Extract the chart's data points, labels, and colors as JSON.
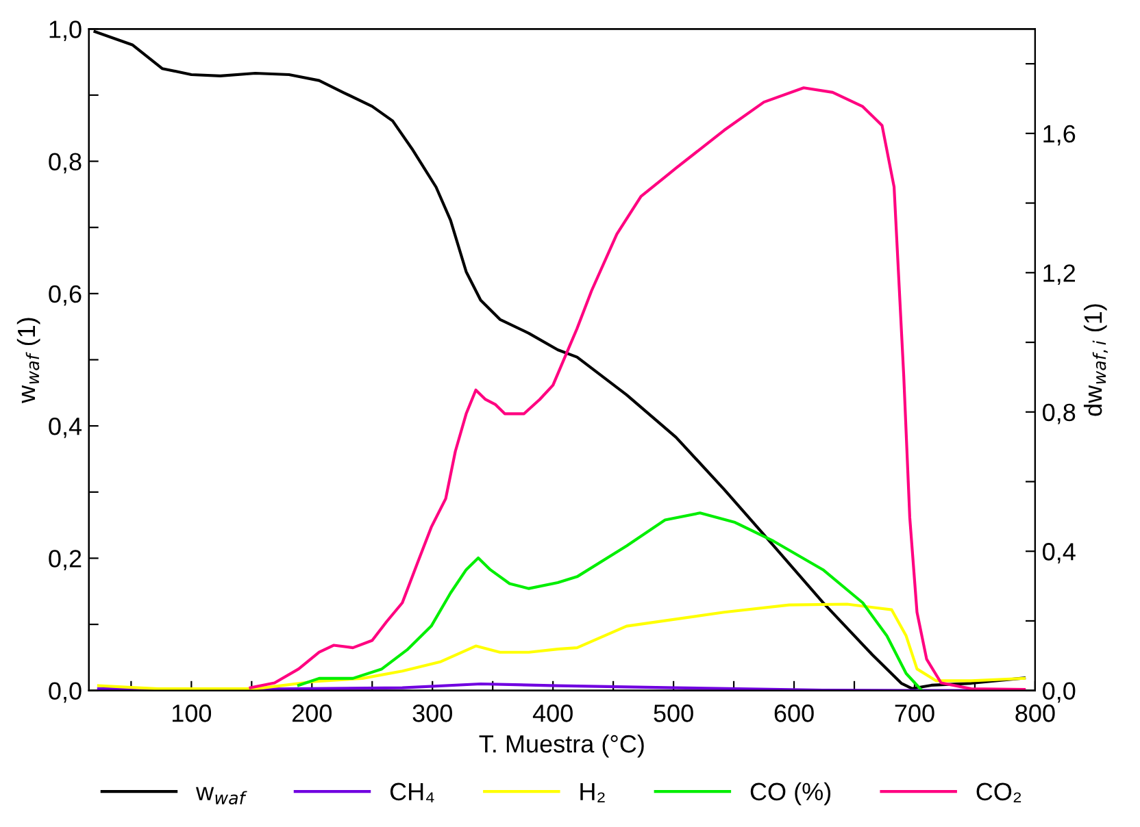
{
  "chart_data": {
    "type": "line",
    "xlabel": "T. Muestra (°C)",
    "ylabel": "w$_{waf}$ (1)",
    "y2label": "dw$_{waf,i}$ (1)",
    "xlim": [
      15,
      800
    ],
    "ylim": [
      0,
      1.0
    ],
    "y2lim": [
      0,
      1.9
    ],
    "xticks": [
      {
        "value": 50,
        "label": null
      },
      100,
      {
        "value": 150,
        "label": null
      },
      200,
      {
        "value": 250,
        "label": null
      },
      300,
      {
        "value": 350,
        "label": null
      },
      400,
      {
        "value": 450,
        "label": null
      },
      500,
      {
        "value": 550,
        "label": null
      },
      600,
      {
        "value": 650,
        "label": null
      },
      700,
      {
        "value": 750,
        "label": null
      },
      800
    ],
    "yticks": [
      {
        "value": 0,
        "label": "0,0"
      },
      {
        "value": 0.1,
        "label": null
      },
      {
        "value": 0.2,
        "label": "0,2"
      },
      {
        "value": 0.3,
        "label": null
      },
      {
        "value": 0.4,
        "label": "0,4"
      },
      {
        "value": 0.5,
        "label": null
      },
      {
        "value": 0.6,
        "label": "0,6"
      },
      {
        "value": 0.7,
        "label": null
      },
      {
        "value": 0.8,
        "label": "0,8"
      },
      {
        "value": 0.9,
        "label": null
      },
      {
        "value": 1.0,
        "label": "1,0"
      }
    ],
    "y2ticks": [
      {
        "value": 0,
        "label": "0,0"
      },
      {
        "value": 0.2,
        "label": null
      },
      {
        "value": 0.4,
        "label": "0,4"
      },
      {
        "value": 0.6,
        "label": null
      },
      {
        "value": 0.8,
        "label": "0,8"
      },
      {
        "value": 1.0,
        "label": null
      },
      {
        "value": 1.2,
        "label": "1,2"
      },
      {
        "value": 1.4,
        "label": null
      },
      {
        "value": 1.6,
        "label": "1,6"
      },
      {
        "value": 1.8,
        "label": null
      }
    ],
    "grid": false,
    "legend": "bottom",
    "line_style": "solid",
    "series": [
      {
        "name": "w$_{waf}$",
        "color": "#000000",
        "x": [
          20,
          51,
          76,
          100,
          124,
          153,
          181,
          206,
          226,
          250,
          267,
          283,
          303,
          315,
          328,
          340,
          356,
          380,
          404,
          420,
          461,
          502,
          542,
          583,
          624,
          665,
          689,
          698,
          714,
          747,
          791
        ],
        "values": [
          0.996,
          0.976,
          0.94,
          0.931,
          0.929,
          0.933,
          0.931,
          0.922,
          0.904,
          0.883,
          0.861,
          0.819,
          0.761,
          0.711,
          0.633,
          0.59,
          0.561,
          0.54,
          0.515,
          0.504,
          0.447,
          0.383,
          0.304,
          0.219,
          0.133,
          0.054,
          0.011,
          0.003,
          0.008,
          0.011,
          0.019
        ]
      },
      {
        "name": "CH₄",
        "color": "#7000e0",
        "axis": "y2",
        "x": [
          23,
          153,
          275,
          340,
          404,
          502,
          624,
          706,
          791
        ],
        "values": [
          0.005,
          0.004,
          0.008,
          0.019,
          0.014,
          0.008,
          0.001,
          0,
          0
        ]
      },
      {
        "name": "H₂",
        "color": "#ffff00",
        "axis": "y2",
        "x": [
          23,
          72,
          153,
          202,
          242,
          275,
          307,
          336,
          356,
          380,
          404,
          420,
          461,
          542,
          596,
          644,
          681,
          693,
          702,
          718,
          747,
          791
        ],
        "values": [
          0.014,
          0.005,
          0.005,
          0.026,
          0.035,
          0.056,
          0.083,
          0.128,
          0.11,
          0.11,
          0.119,
          0.123,
          0.185,
          0.225,
          0.246,
          0.248,
          0.232,
          0.157,
          0.062,
          0.028,
          0.028,
          0.035
        ]
      },
      {
        "name": "CO (%)",
        "color": "#00ee00",
        "axis": "y2",
        "x": [
          189,
          206,
          234,
          258,
          279,
          299,
          315,
          328,
          338,
          348,
          364,
          380,
          404,
          420,
          461,
          493,
          522,
          551,
          583,
          624,
          657,
          677,
          693,
          706
        ],
        "values": [
          0.015,
          0.035,
          0.035,
          0.062,
          0.117,
          0.185,
          0.28,
          0.347,
          0.381,
          0.347,
          0.307,
          0.293,
          0.31,
          0.327,
          0.415,
          0.49,
          0.51,
          0.483,
          0.429,
          0.347,
          0.252,
          0.157,
          0.049,
          0
        ]
      },
      {
        "name": "CO₂",
        "color": "#ff0080",
        "axis": "y2",
        "x": [
          149,
          169,
          189,
          206,
          218,
          234,
          250,
          262,
          275,
          287,
          299,
          311,
          319,
          328,
          336,
          344,
          352,
          360,
          376,
          389,
          400,
          420,
          432,
          453,
          473,
          502,
          542,
          575,
          608,
          632,
          657,
          673,
          683,
          691,
          696,
          702,
          710,
          722,
          747,
          791
        ],
        "values": [
          0.008,
          0.022,
          0.062,
          0.11,
          0.13,
          0.123,
          0.144,
          0.198,
          0.252,
          0.361,
          0.469,
          0.551,
          0.687,
          0.795,
          0.863,
          0.836,
          0.822,
          0.795,
          0.795,
          0.836,
          0.877,
          1.04,
          1.148,
          1.311,
          1.419,
          1.5,
          1.609,
          1.69,
          1.731,
          1.718,
          1.677,
          1.623,
          1.446,
          0.904,
          0.497,
          0.225,
          0.09,
          0.022,
          0.005,
          0.003
        ]
      }
    ]
  }
}
